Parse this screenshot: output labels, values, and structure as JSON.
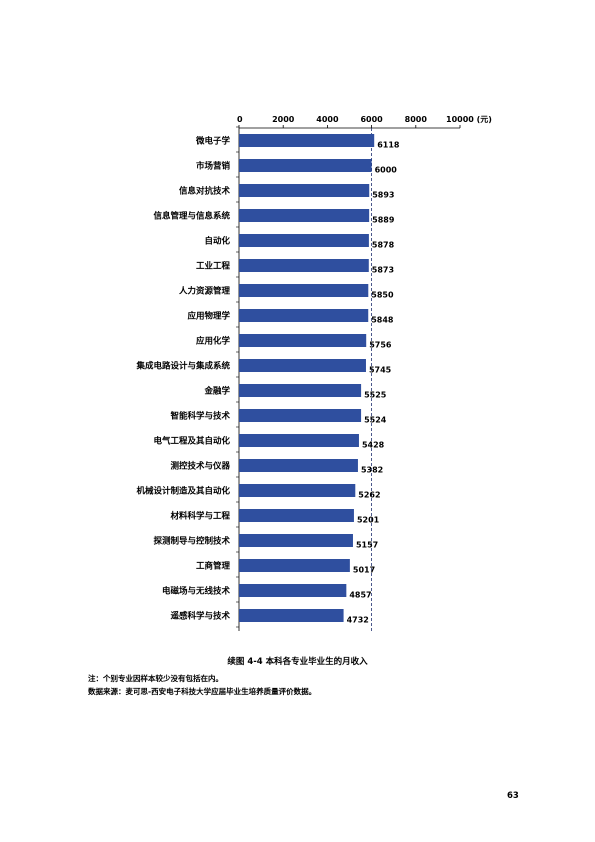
{
  "chart_data": {
    "type": "bar",
    "orientation": "horizontal",
    "categories": [
      "微电子学",
      "市场营销",
      "信息对抗技术",
      "信息管理与信息系统",
      "自动化",
      "工业工程",
      "人力资源管理",
      "应用物理学",
      "应用化学",
      "集成电路设计与集成系统",
      "金融学",
      "智能科学与技术",
      "电气工程及其自动化",
      "测控技术与仪器",
      "机械设计制造及其自动化",
      "材料科学与工程",
      "探测制导与控制技术",
      "工商管理",
      "电磁场与无线技术",
      "遥感科学与技术"
    ],
    "values": [
      6118,
      6000,
      5893,
      5889,
      5878,
      5873,
      5850,
      5848,
      5756,
      5745,
      5525,
      5524,
      5428,
      5382,
      5262,
      5201,
      5157,
      5017,
      4857,
      4732
    ],
    "value_labels": [
      "6118",
      "6000",
      "5893",
      "5889",
      "5878",
      "5873",
      "5850",
      "5848",
      "5756",
      "5745",
      "5525",
      "5524",
      "5428",
      "5382",
      "5262",
      "5201",
      "5157",
      "5017",
      "4857",
      "4732"
    ],
    "x_ticks": [
      "0",
      "2000",
      "4000",
      "6000",
      "8000",
      "10000 (元)"
    ],
    "xlim": [
      0,
      10000
    ],
    "reference_line_value": 6000,
    "axis_position": "top",
    "grid": false,
    "bar_color": "#2f4f9f",
    "reference_line_color": "#1f2f6f"
  },
  "caption": "续图 4-4   本科各专业毕业生的月收入",
  "notes": [
    "注：个别专业因样本较少没有包括在内。",
    "数据来源：麦可思-西安电子科技大学应届毕业生培养质量评价数据。"
  ],
  "page_number": "63"
}
